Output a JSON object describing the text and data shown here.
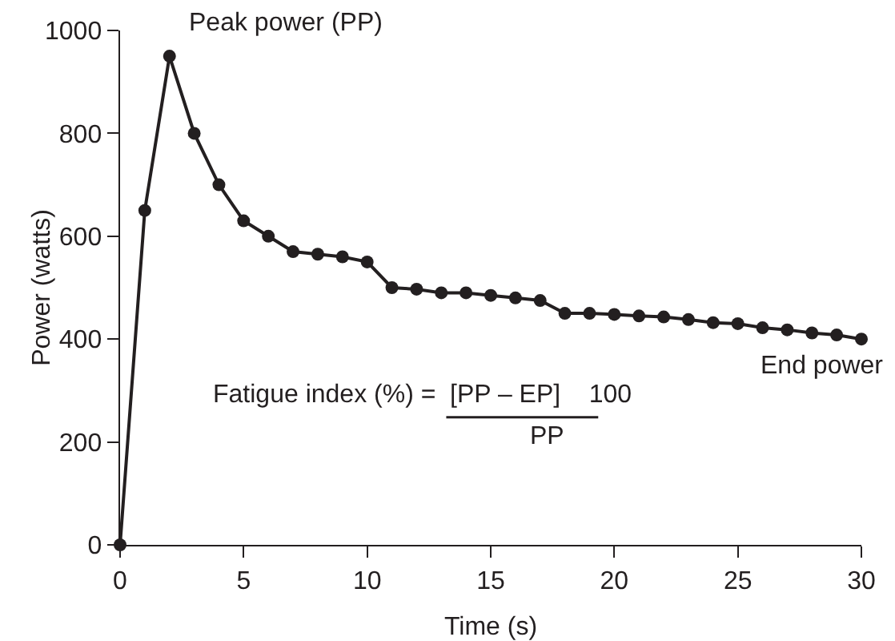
{
  "chart_data": {
    "type": "line",
    "xlabel": "Time (s)",
    "ylabel": "Power (watts)",
    "x": [
      0,
      1,
      2,
      3,
      4,
      5,
      6,
      7,
      8,
      9,
      10,
      11,
      12,
      13,
      14,
      15,
      16,
      17,
      18,
      19,
      20,
      21,
      22,
      23,
      24,
      25,
      26,
      27,
      28,
      29,
      30
    ],
    "series": [
      {
        "color": "#231f20",
        "values": [
          0,
          650,
          950,
          800,
          700,
          630,
          600,
          570,
          565,
          560,
          550,
          500,
          497,
          490,
          490,
          485,
          480,
          475,
          450,
          450,
          448,
          445,
          443,
          438,
          432,
          430,
          422,
          418,
          412,
          408,
          400
        ]
      }
    ],
    "xlim": [
      0,
      30
    ],
    "xticks": [
      0,
      5,
      10,
      15,
      20,
      25,
      30
    ],
    "ylim": [
      0,
      1000
    ],
    "yticks": [
      0,
      200,
      400,
      600,
      800,
      1000
    ],
    "grid": false,
    "marker": "circle",
    "line_style": "solid",
    "annotations": [
      {
        "text": "Peak power (PP)",
        "x": 2,
        "y": 950
      },
      {
        "text": "End power",
        "x": 30,
        "y": 400
      },
      "Fatigue index (%) =",
      "[PP – EP]    100",
      "PP"
    ]
  }
}
